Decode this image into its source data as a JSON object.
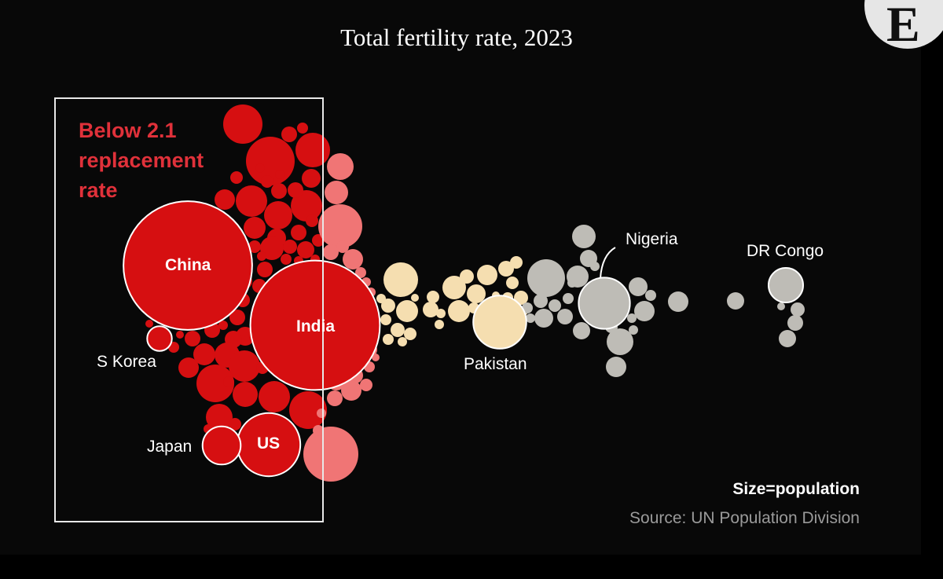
{
  "chart_data": {
    "type": "bubble",
    "title": "Total fertility rate, 2023",
    "threshold_label": "Below 2.1 replacement rate",
    "size_note": "Size=population",
    "source": "Source: UN Population Division",
    "colors": {
      "below": "#d60f11",
      "near": "#f07575",
      "mid": "#f5deb0",
      "high": "#bebcb6"
    },
    "labeled": [
      {
        "name": "China",
        "group": "below",
        "population_m": 1410
      },
      {
        "name": "India",
        "group": "below",
        "population_m": 1430
      },
      {
        "name": "US",
        "group": "below",
        "population_m": 340
      },
      {
        "name": "Japan",
        "group": "below",
        "population_m": 124
      },
      {
        "name": "S Korea",
        "group": "below",
        "population_m": 52
      },
      {
        "name": "Pakistan",
        "group": "mid",
        "population_m": 240
      },
      {
        "name": "Nigeria",
        "group": "high",
        "population_m": 224
      },
      {
        "name": "DR Congo",
        "group": "high",
        "population_m": 102
      }
    ]
  },
  "logo": {
    "letter": "E"
  }
}
